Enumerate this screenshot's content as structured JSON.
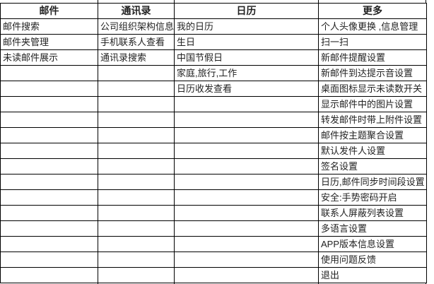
{
  "colors": {
    "background": "#ffffff",
    "grid_border": "#000000",
    "text": "#222222"
  },
  "table": {
    "row_count": 17,
    "columns": [
      {
        "header": "邮件",
        "items": [
          "邮件搜索",
          "邮件夹管理",
          "未读邮件展示"
        ]
      },
      {
        "header": "通讯录",
        "items": [
          "公司组织架构信息",
          "手机联系人查看",
          "通讯录搜索"
        ]
      },
      {
        "header": "日历",
        "items": [
          "我的日历",
          "生日",
          "中国节假日",
          "家庭,旅行,工作",
          "日历收发查看"
        ]
      },
      {
        "header": "更多",
        "items": [
          "个人头像更换 ,信息管理",
          "扫一扫",
          "新邮件提醒设置",
          "新邮件到达提示音设置",
          "桌面图标显示未读数开关",
          "显示邮件中的图片设置",
          "转发邮件时带上附件设置",
          "邮件按主题聚合设置",
          "默认发件人设置",
          "签名设置",
          "日历,邮件同步时间段设置",
          "安全:手势密码开启",
          "联系人屏蔽列表设置",
          "多语言设置",
          "APP版本信息设置",
          "使用问题反馈",
          "退出"
        ]
      }
    ]
  }
}
